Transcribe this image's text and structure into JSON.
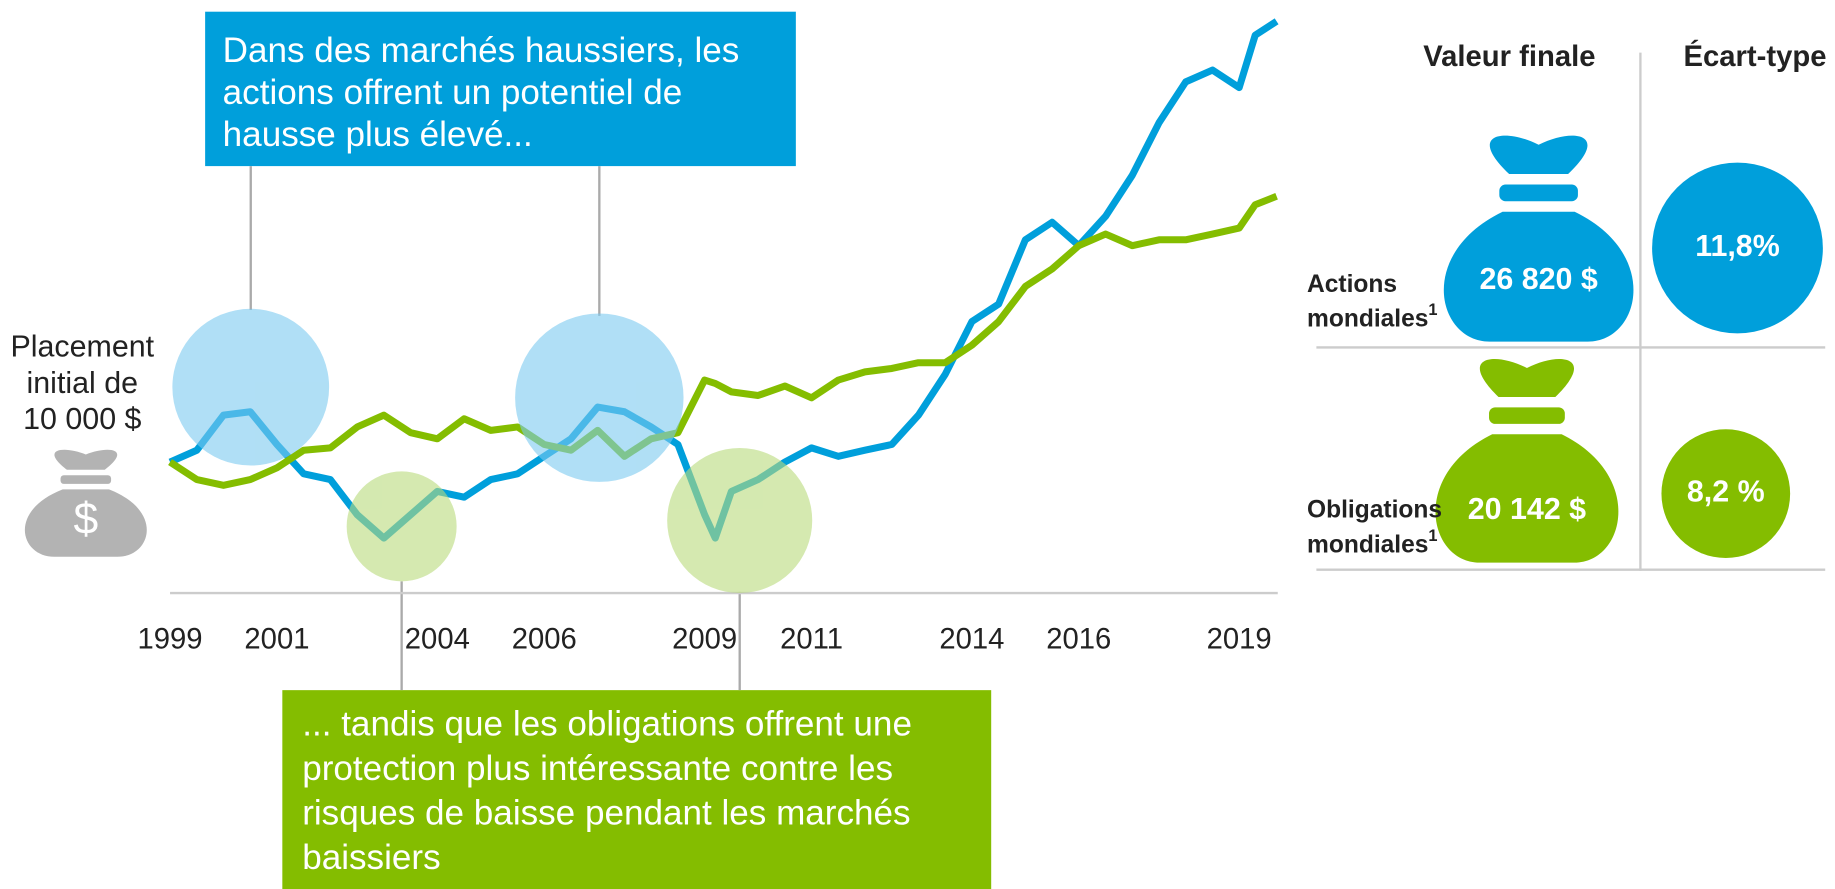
{
  "chart_data": {
    "type": "line",
    "x": [
      1999.0,
      1999.5,
      2000.0,
      2000.5,
      2001.0,
      2001.5,
      2002.0,
      2002.5,
      2003.0,
      2003.5,
      2004.0,
      2004.5,
      2005.0,
      2005.5,
      2006.0,
      2006.5,
      2007.0,
      2007.5,
      2008.0,
      2008.5,
      2009.0,
      2009.2,
      2009.5,
      2010.0,
      2010.5,
      2011.0,
      2011.5,
      2012.0,
      2012.5,
      2013.0,
      2013.5,
      2014.0,
      2014.5,
      2015.0,
      2015.5,
      2016.0,
      2016.5,
      2017.0,
      2017.5,
      2018.0,
      2018.5,
      2019.0,
      2019.3,
      2019.7
    ],
    "series": [
      {
        "color": "#009fdb",
        "values": [
          10000,
          10450,
          11790,
          11920,
          10670,
          9550,
          9330,
          7990,
          7100,
          7990,
          8880,
          8660,
          9330,
          9550,
          10220,
          10890,
          12100,
          11920,
          11340,
          10670,
          7990,
          7100,
          8880,
          9330,
          10000,
          10540,
          10220,
          10450,
          10670,
          11790,
          13350,
          15360,
          16030,
          18480,
          19150,
          18260,
          19380,
          20940,
          22950,
          24510,
          24960,
          24290,
          26290,
          26820
        ]
      },
      {
        "color": "#84bd00",
        "values": [
          10000,
          9330,
          9110,
          9330,
          9780,
          10450,
          10540,
          11340,
          11790,
          11120,
          10890,
          11650,
          11210,
          11340,
          10670,
          10450,
          11210,
          10220,
          10890,
          11120,
          13130,
          13000,
          12680,
          12540,
          12900,
          12450,
          13130,
          13440,
          13570,
          13790,
          13790,
          14460,
          15360,
          16700,
          17370,
          18260,
          18700,
          18260,
          18480,
          18480,
          18700,
          18930,
          19820,
          20142
        ]
      }
    ],
    "xlim": [
      1999,
      2019.7
    ],
    "xticks": [
      1999,
      2001,
      2004,
      2006,
      2009,
      2011,
      2014,
      2016,
      2019
    ],
    "ylim": [
      5000,
      27500
    ],
    "initial": {
      "lines": [
        "Placement",
        "initial de",
        "10 000 $"
      ],
      "icon_symbol": "$"
    },
    "annotations": [
      {
        "lines": [
          "Dans des marchés haussiers, les",
          "actions offrent un potentiel de",
          "hausse plus élevé..."
        ]
      },
      {
        "lines": [
          "... tandis que les obligations offrent une",
          "protection plus intéressante contre les",
          "risques de baisse pendant les marchés",
          "baissiers"
        ]
      }
    ],
    "panel": {
      "headers": [
        "Valeur finale",
        "Écart-type"
      ],
      "rows": [
        {
          "label": [
            "Actions",
            "mondiales"
          ],
          "note": "1",
          "final": "26 820 $",
          "sd": "11,8%"
        },
        {
          "label": [
            "Obligations",
            "mondiales"
          ],
          "note": "1",
          "final": "20 142 $",
          "sd": "8,2 %"
        }
      ]
    }
  }
}
